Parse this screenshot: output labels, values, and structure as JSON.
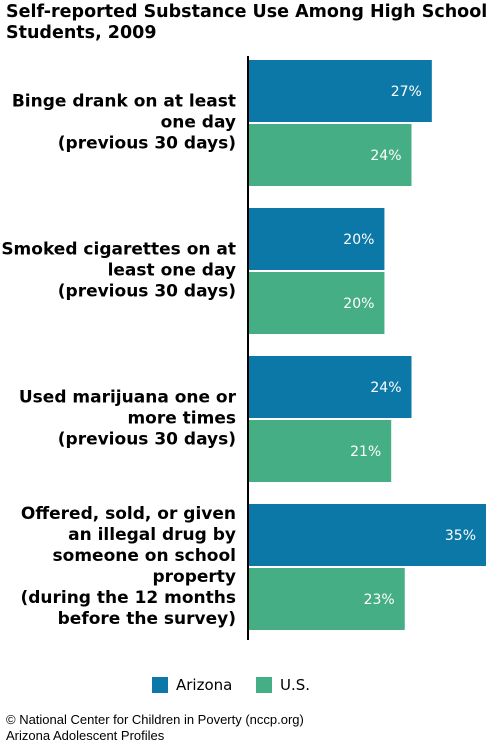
{
  "chart_data": {
    "type": "bar",
    "orientation": "horizontal",
    "title": "Self-reported Substance Use Among High School Students, 2009",
    "categories": [
      [
        "Binge drank on at least",
        "one day",
        "(previous 30 days)"
      ],
      [
        "Smoked cigarettes on at",
        "least one day",
        "(previous 30 days)"
      ],
      [
        "Used marijuana one or",
        "more times",
        "(previous 30 days)"
      ],
      [
        "Offered, sold, or given",
        "an illegal drug by",
        "someone on school",
        "property",
        "(during the 12 months",
        "before the survey)"
      ]
    ],
    "series": [
      {
        "name": "Arizona",
        "values": [
          27,
          20,
          24,
          35
        ],
        "labels": [
          "27%",
          "20%",
          "24%",
          "35%"
        ],
        "color": "#0B78A8"
      },
      {
        "name": "U.S.",
        "values": [
          24,
          20,
          21,
          23
        ],
        "labels": [
          "24%",
          "20%",
          "21%",
          "23%"
        ],
        "color": "#45AE84"
      }
    ],
    "xlim": [
      0,
      35
    ],
    "unit": "%",
    "grid": false,
    "legend_position": "bottom"
  },
  "footer": {
    "line1": "© National Center for Children in Poverty (nccp.org)",
    "line2": "Arizona Adolescent Profiles"
  }
}
